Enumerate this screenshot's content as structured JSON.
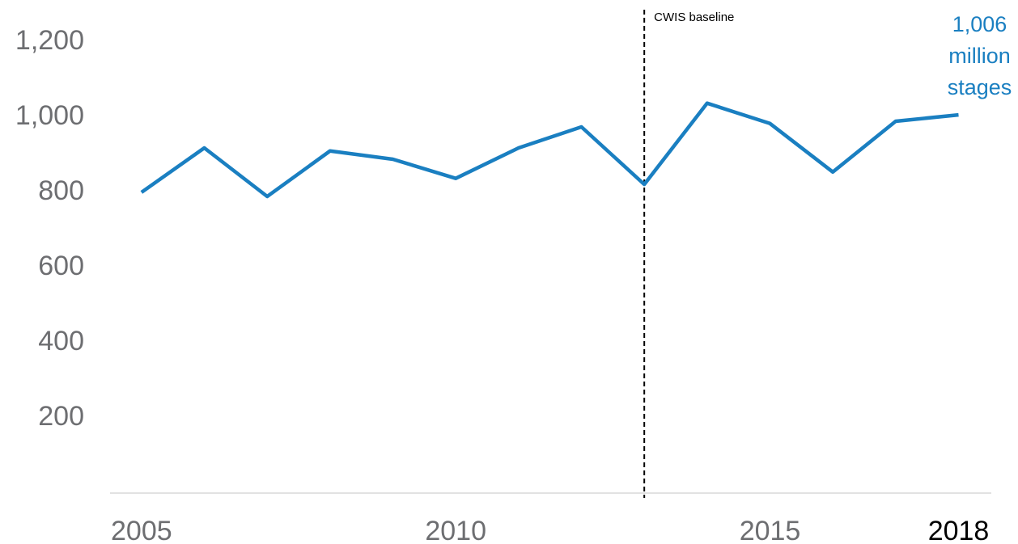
{
  "chart_data": {
    "type": "line",
    "x": [
      2005,
      2006,
      2007,
      2008,
      2009,
      2010,
      2011,
      2012,
      2013,
      2014,
      2015,
      2016,
      2017,
      2018
    ],
    "series": [
      {
        "color": "#1a7fc1",
        "values": [
          800,
          918,
          789,
          910,
          888,
          837,
          918,
          974,
          821,
          1037,
          983,
          854,
          989,
          1006
        ],
        "value_labels": [
          null,
          null,
          null,
          null,
          null,
          null,
          null,
          null,
          null,
          null,
          null,
          null,
          null,
          "1,006 million stages"
        ]
      }
    ],
    "xlim": [
      2004.5,
      2018.65
    ],
    "xticks": [
      2005,
      2010,
      2015,
      2018
    ],
    "xtick_colors": [
      "#6d6e71",
      "#6d6e71",
      "#6d6e71",
      "#000000"
    ],
    "ylim": [
      0,
      1290
    ],
    "yticks": [
      200,
      400,
      600,
      800,
      {
        "value": 1000,
        "label": "1,000"
      },
      {
        "value": 1200,
        "label": "1,200"
      }
    ],
    "vline": {
      "x": 2013,
      "label": "CWIS baseline"
    }
  }
}
